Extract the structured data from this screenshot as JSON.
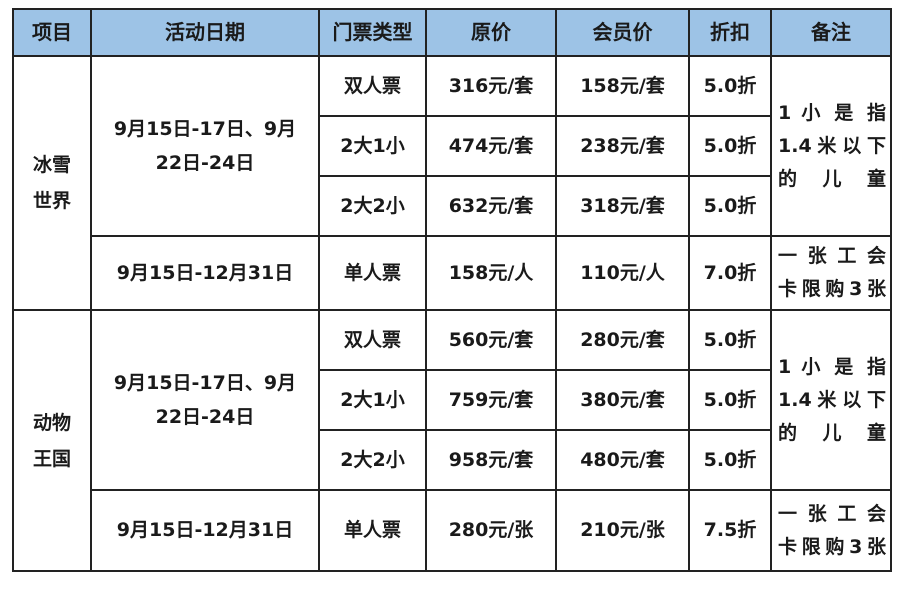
{
  "headers": [
    "项目",
    "活动日期",
    "门票类型",
    "原价",
    "会员价",
    "折扣",
    "备注"
  ],
  "sections": [
    {
      "project_line1": "冰雪",
      "project_line2": "世界",
      "group_date_line1": "9月15日-17日、9月",
      "group_date_line2": "22日-24日",
      "group_note_lines": [
        "1 小 是 指",
        "1.4米以下",
        "的儿童"
      ],
      "group_rows": [
        {
          "type": "双人票",
          "price": "316元/套",
          "member": "158元/套",
          "discount": "5.0折"
        },
        {
          "type": "2大1小",
          "price": "474元/套",
          "member": "238元/套",
          "discount": "5.0折"
        },
        {
          "type": "2大2小",
          "price": "632元/套",
          "member": "318元/套",
          "discount": "5.0折"
        }
      ],
      "single": {
        "date": "9月15日-12月31日",
        "type": "单人票",
        "price": "158元/人",
        "member": "110元/人",
        "discount": "7.0折",
        "note_lines": [
          "一 张 工 会",
          "卡限购3张"
        ]
      }
    },
    {
      "project_line1": "动物",
      "project_line2": "王国",
      "group_date_line1": "9月15日-17日、9月",
      "group_date_line2": "22日-24日",
      "group_note_lines": [
        "1 小 是 指",
        "1.4米以下",
        "的儿童"
      ],
      "group_rows": [
        {
          "type": "双人票",
          "price": "560元/套",
          "member": "280元/套",
          "discount": "5.0折"
        },
        {
          "type": "2大1小",
          "price": "759元/套",
          "member": "380元/套",
          "discount": "5.0折"
        },
        {
          "type": "2大2小",
          "price": "958元/套",
          "member": "480元/套",
          "discount": "5.0折"
        }
      ],
      "single": {
        "date": "9月15日-12月31日",
        "type": "单人票",
        "price": "280元/张",
        "member": "210元/张",
        "discount": "7.5折",
        "note_lines": [
          "一 张 工 会",
          "卡限购3张"
        ]
      }
    }
  ],
  "colors": {
    "header_bg": "#9dc3e6",
    "border": "#222222"
  }
}
